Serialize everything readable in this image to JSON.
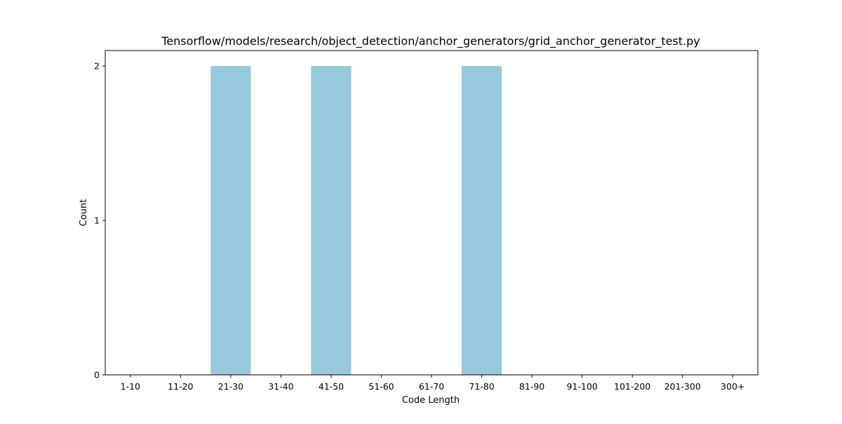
{
  "chart_data": {
    "type": "bar",
    "title": "Tensorflow/models/research/object_detection/anchor_generators/grid_anchor_generator_test.py",
    "xlabel": "Code Length",
    "ylabel": "Count",
    "categories": [
      "1-10",
      "11-20",
      "21-30",
      "31-40",
      "41-50",
      "51-60",
      "61-70",
      "71-80",
      "81-90",
      "91-100",
      "101-200",
      "201-300",
      "300+"
    ],
    "values": [
      0,
      0,
      2,
      0,
      2,
      0,
      0,
      2,
      0,
      0,
      0,
      0,
      0
    ],
    "ylim": [
      0,
      2.1
    ],
    "yticks": [
      0,
      1,
      2
    ],
    "grid": false,
    "bar_color": "#96c9dc"
  }
}
